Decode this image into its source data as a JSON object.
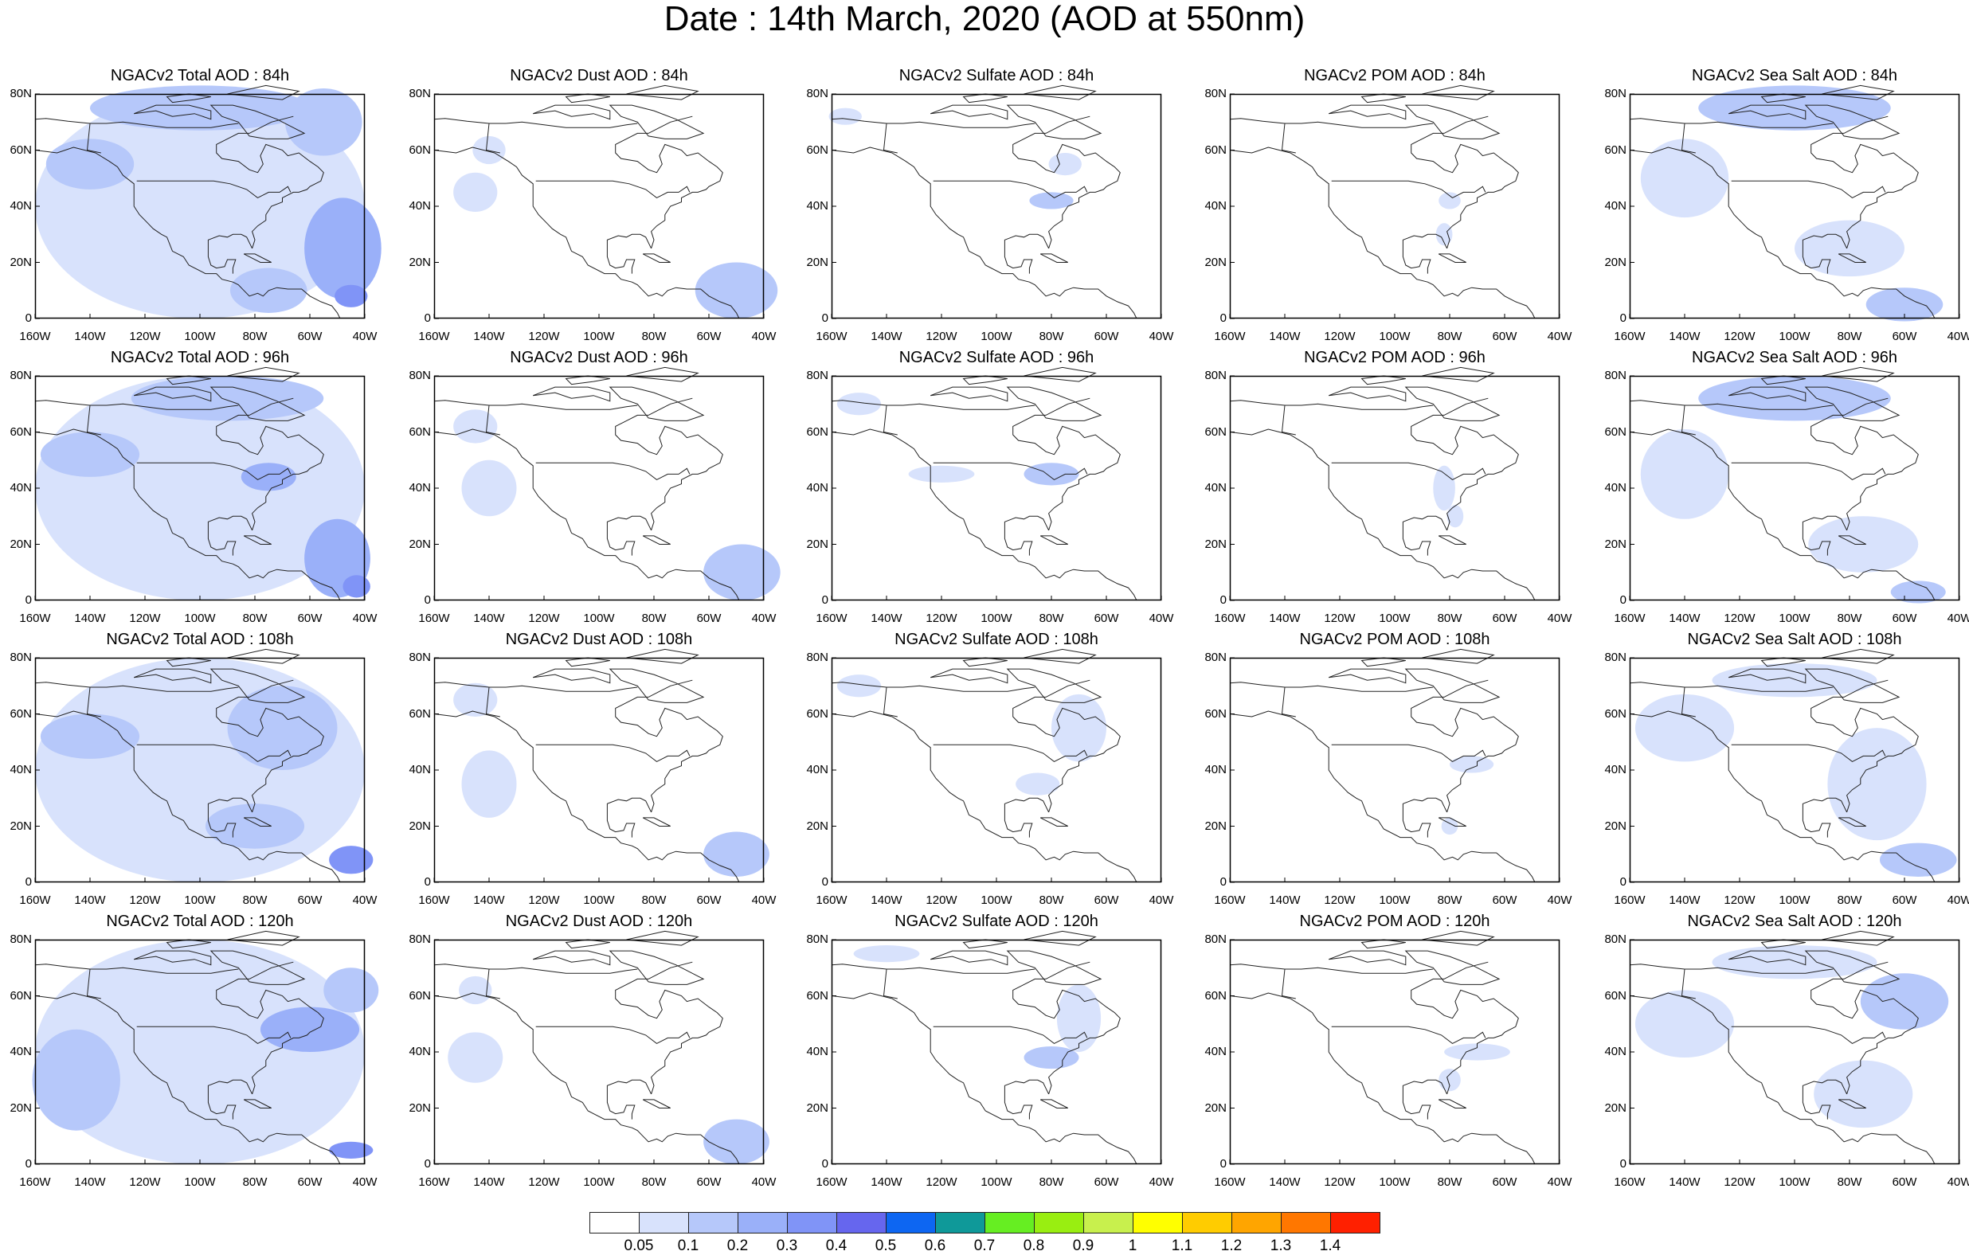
{
  "title": "Date : 14th March, 2020 (AOD at 550nm)",
  "panel_titles": [
    [
      "NGACv2 Total AOD : 84h",
      "NGACv2 Dust AOD : 84h",
      "NGACv2 Sulfate AOD : 84h",
      "NGACv2 POM AOD : 84h",
      "NGACv2 Sea Salt AOD : 84h"
    ],
    [
      "NGACv2 Total AOD : 96h",
      "NGACv2 Dust AOD : 96h",
      "NGACv2 Sulfate AOD : 96h",
      "NGACv2 POM AOD : 96h",
      "NGACv2 Sea Salt AOD : 96h"
    ],
    [
      "NGACv2 Total AOD : 108h",
      "NGACv2 Dust AOD : 108h",
      "NGACv2 Sulfate AOD : 108h",
      "NGACv2 POM AOD : 108h",
      "NGACv2 Sea Salt  AOD : 108h"
    ],
    [
      "NGACv2 Total AOD : 120h",
      "NGACv2 Dust AOD : 120h",
      "NGACv2 Sulfate AOD : 120h",
      "NGACv2 POM AOD : 120h",
      "NGACv2 Sea Salt  AOD : 120h"
    ]
  ],
  "axes": {
    "lat_ticks": [
      "0",
      "20N",
      "40N",
      "60N",
      "80N"
    ],
    "lon_ticks": [
      "160W",
      "140W",
      "120W",
      "100W",
      "80W",
      "60W",
      "40W"
    ]
  },
  "colorbar": {
    "colors": [
      "#ffffff",
      "#d8e2fc",
      "#b6c8fa",
      "#9ab0f9",
      "#8094f7",
      "#6666ee",
      "#0d66f2",
      "#0f9999",
      "#66ee22",
      "#99ee11",
      "#c8f04d",
      "#ffff00",
      "#ffcc00",
      "#ffa500",
      "#ff7700",
      "#ff2000"
    ],
    "labels": [
      "0.05",
      "0.1",
      "0.2",
      "0.3",
      "0.4",
      "0.5",
      "0.6",
      "0.7",
      "0.8",
      "0.9",
      "1",
      "1.1",
      "1.2",
      "1.3",
      "1.4"
    ]
  }
}
